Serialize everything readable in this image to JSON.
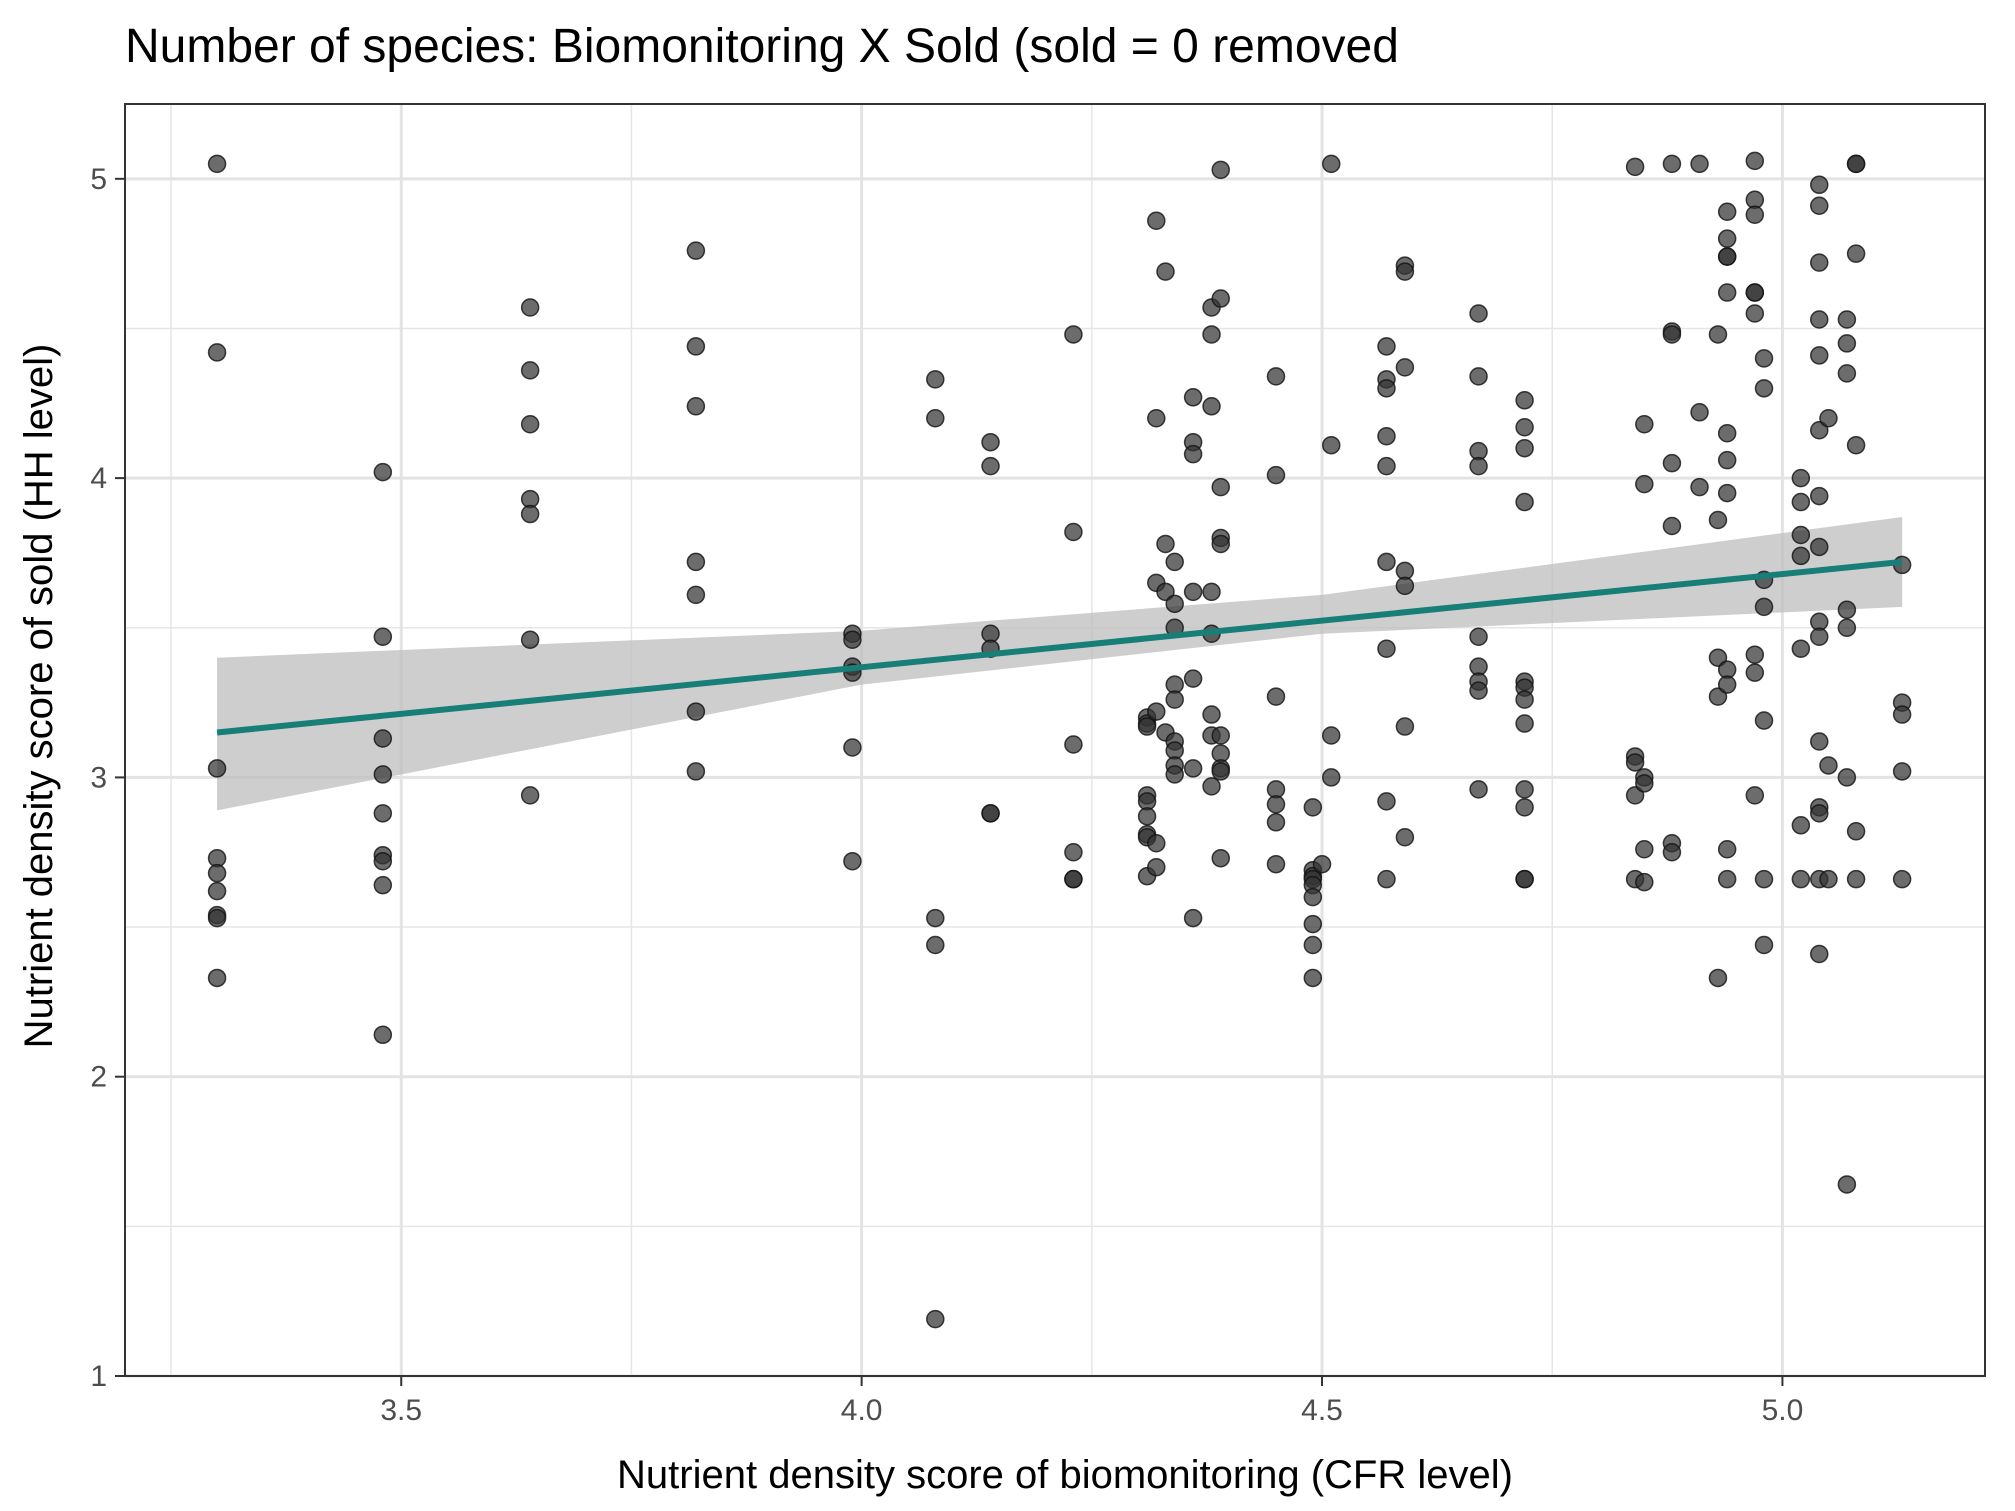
{
  "chart_data": {
    "type": "scatter",
    "title": "Number of species: Biomonitoring X Sold (sold = 0 removed",
    "xlabel": "Nutrient density score of biomonitoring (CFR level)",
    "ylabel": "Nutrient density score of sold (HH level)",
    "xlim": [
      3.2,
      5.22
    ],
    "ylim": [
      1.0,
      5.25
    ],
    "x_ticks": [
      3.5,
      4.0,
      4.5,
      5.0
    ],
    "x_tick_labels": [
      "3.5",
      "4.0",
      "4.5",
      "5.0"
    ],
    "y_ticks": [
      1,
      2,
      3,
      4,
      5
    ],
    "y_tick_labels": [
      "1",
      "2",
      "3",
      "4",
      "5"
    ],
    "grid": true,
    "legend": "none",
    "colors": {
      "points": "#333333",
      "fit_line": "#177e78",
      "ribbon": "#bdbdbd",
      "grid": "#e6e6e6",
      "panel_border": "#333333"
    },
    "fit": {
      "method": "linear",
      "x": [
        3.3,
        5.13
      ],
      "y": [
        3.15,
        3.72
      ],
      "ci_lower": [
        2.89,
        3.57
      ],
      "ci_upper": [
        3.4,
        3.87
      ],
      "ci_x": [
        3.3,
        4.0,
        4.5,
        5.13
      ],
      "ci_lo_series": [
        2.89,
        3.31,
        3.48,
        3.57
      ],
      "ci_hi_series": [
        3.4,
        3.49,
        3.61,
        3.87
      ]
    },
    "points": [
      [
        3.3,
        5.05
      ],
      [
        3.3,
        4.42
      ],
      [
        3.3,
        3.03
      ],
      [
        3.3,
        2.73
      ],
      [
        3.3,
        2.68
      ],
      [
        3.3,
        2.62
      ],
      [
        3.3,
        2.54
      ],
      [
        3.3,
        2.53
      ],
      [
        3.3,
        2.33
      ],
      [
        3.48,
        4.02
      ],
      [
        3.48,
        3.47
      ],
      [
        3.48,
        3.13
      ],
      [
        3.48,
        3.01
      ],
      [
        3.48,
        2.88
      ],
      [
        3.48,
        2.74
      ],
      [
        3.48,
        2.72
      ],
      [
        3.48,
        2.64
      ],
      [
        3.48,
        2.14
      ],
      [
        3.64,
        4.57
      ],
      [
        3.64,
        4.36
      ],
      [
        3.64,
        4.18
      ],
      [
        3.64,
        3.93
      ],
      [
        3.64,
        3.88
      ],
      [
        3.64,
        3.46
      ],
      [
        3.64,
        2.94
      ],
      [
        3.82,
        4.76
      ],
      [
        3.82,
        4.44
      ],
      [
        3.82,
        4.24
      ],
      [
        3.82,
        3.72
      ],
      [
        3.82,
        3.61
      ],
      [
        3.82,
        3.22
      ],
      [
        3.82,
        3.02
      ],
      [
        3.99,
        3.48
      ],
      [
        3.99,
        3.46
      ],
      [
        3.99,
        3.37
      ],
      [
        3.99,
        3.35
      ],
      [
        3.99,
        3.1
      ],
      [
        3.99,
        2.72
      ],
      [
        4.08,
        4.33
      ],
      [
        4.08,
        4.2
      ],
      [
        4.08,
        2.53
      ],
      [
        4.08,
        2.44
      ],
      [
        4.08,
        1.19
      ],
      [
        4.14,
        4.12
      ],
      [
        4.14,
        4.04
      ],
      [
        4.14,
        3.48
      ],
      [
        4.14,
        3.43
      ],
      [
        4.14,
        2.88
      ],
      [
        4.14,
        2.88
      ],
      [
        4.23,
        4.48
      ],
      [
        4.23,
        3.82
      ],
      [
        4.23,
        3.11
      ],
      [
        4.23,
        2.75
      ],
      [
        4.23,
        2.66
      ],
      [
        4.23,
        2.66
      ],
      [
        4.31,
        3.2
      ],
      [
        4.31,
        3.18
      ],
      [
        4.31,
        3.17
      ],
      [
        4.31,
        2.94
      ],
      [
        4.31,
        2.92
      ],
      [
        4.31,
        2.87
      ],
      [
        4.31,
        2.81
      ],
      [
        4.31,
        2.8
      ],
      [
        4.31,
        2.67
      ],
      [
        4.32,
        4.86
      ],
      [
        4.32,
        4.2
      ],
      [
        4.32,
        3.65
      ],
      [
        4.32,
        3.22
      ],
      [
        4.32,
        2.78
      ],
      [
        4.32,
        2.7
      ],
      [
        4.33,
        4.69
      ],
      [
        4.33,
        3.78
      ],
      [
        4.33,
        3.62
      ],
      [
        4.33,
        3.15
      ],
      [
        4.34,
        3.72
      ],
      [
        4.34,
        3.58
      ],
      [
        4.34,
        3.5
      ],
      [
        4.34,
        3.31
      ],
      [
        4.34,
        3.26
      ],
      [
        4.34,
        3.12
      ],
      [
        4.34,
        3.09
      ],
      [
        4.34,
        3.04
      ],
      [
        4.34,
        3.01
      ],
      [
        4.36,
        4.27
      ],
      [
        4.36,
        4.12
      ],
      [
        4.36,
        4.08
      ],
      [
        4.36,
        3.62
      ],
      [
        4.36,
        3.33
      ],
      [
        4.36,
        3.03
      ],
      [
        4.36,
        2.53
      ],
      [
        4.38,
        4.57
      ],
      [
        4.38,
        4.48
      ],
      [
        4.38,
        4.24
      ],
      [
        4.38,
        3.62
      ],
      [
        4.38,
        3.48
      ],
      [
        4.38,
        3.21
      ],
      [
        4.38,
        3.14
      ],
      [
        4.38,
        2.97
      ],
      [
        4.39,
        5.03
      ],
      [
        4.39,
        4.6
      ],
      [
        4.39,
        3.97
      ],
      [
        4.39,
        3.8
      ],
      [
        4.39,
        3.78
      ],
      [
        4.39,
        3.14
      ],
      [
        4.39,
        3.08
      ],
      [
        4.39,
        3.03
      ],
      [
        4.39,
        3.02
      ],
      [
        4.39,
        2.73
      ],
      [
        4.45,
        4.34
      ],
      [
        4.45,
        4.01
      ],
      [
        4.45,
        3.27
      ],
      [
        4.45,
        2.96
      ],
      [
        4.45,
        2.91
      ],
      [
        4.45,
        2.85
      ],
      [
        4.45,
        2.71
      ],
      [
        4.49,
        2.9
      ],
      [
        4.49,
        2.69
      ],
      [
        4.49,
        2.67
      ],
      [
        4.49,
        2.66
      ],
      [
        4.49,
        2.64
      ],
      [
        4.49,
        2.6
      ],
      [
        4.49,
        2.51
      ],
      [
        4.49,
        2.44
      ],
      [
        4.49,
        2.33
      ],
      [
        4.5,
        2.71
      ],
      [
        4.51,
        5.05
      ],
      [
        4.51,
        4.11
      ],
      [
        4.51,
        3.14
      ],
      [
        4.51,
        3.0
      ],
      [
        4.57,
        4.44
      ],
      [
        4.57,
        4.33
      ],
      [
        4.57,
        4.3
      ],
      [
        4.57,
        4.14
      ],
      [
        4.57,
        4.04
      ],
      [
        4.57,
        3.72
      ],
      [
        4.57,
        3.43
      ],
      [
        4.57,
        2.92
      ],
      [
        4.57,
        2.66
      ],
      [
        4.59,
        4.71
      ],
      [
        4.59,
        4.69
      ],
      [
        4.59,
        4.37
      ],
      [
        4.59,
        3.69
      ],
      [
        4.59,
        3.64
      ],
      [
        4.59,
        3.17
      ],
      [
        4.59,
        2.8
      ],
      [
        4.67,
        4.55
      ],
      [
        4.67,
        4.34
      ],
      [
        4.67,
        4.09
      ],
      [
        4.67,
        4.04
      ],
      [
        4.67,
        3.47
      ],
      [
        4.67,
        3.37
      ],
      [
        4.67,
        3.32
      ],
      [
        4.67,
        3.29
      ],
      [
        4.67,
        2.96
      ],
      [
        4.72,
        4.26
      ],
      [
        4.72,
        4.17
      ],
      [
        4.72,
        4.1
      ],
      [
        4.72,
        3.92
      ],
      [
        4.72,
        3.32
      ],
      [
        4.72,
        3.3
      ],
      [
        4.72,
        3.26
      ],
      [
        4.72,
        3.18
      ],
      [
        4.72,
        2.96
      ],
      [
        4.72,
        2.9
      ],
      [
        4.72,
        2.66
      ],
      [
        4.72,
        2.66
      ],
      [
        4.84,
        5.04
      ],
      [
        4.84,
        3.07
      ],
      [
        4.84,
        3.05
      ],
      [
        4.84,
        2.94
      ],
      [
        4.84,
        2.66
      ],
      [
        4.85,
        4.18
      ],
      [
        4.85,
        3.98
      ],
      [
        4.85,
        3.0
      ],
      [
        4.85,
        2.98
      ],
      [
        4.85,
        2.76
      ],
      [
        4.85,
        2.65
      ],
      [
        4.88,
        5.05
      ],
      [
        4.88,
        4.49
      ],
      [
        4.88,
        4.48
      ],
      [
        4.88,
        4.05
      ],
      [
        4.88,
        3.84
      ],
      [
        4.88,
        2.78
      ],
      [
        4.88,
        2.75
      ],
      [
        4.91,
        5.05
      ],
      [
        4.91,
        4.22
      ],
      [
        4.91,
        3.97
      ],
      [
        4.93,
        4.48
      ],
      [
        4.93,
        3.86
      ],
      [
        4.93,
        3.4
      ],
      [
        4.93,
        3.27
      ],
      [
        4.93,
        2.33
      ],
      [
        4.94,
        4.89
      ],
      [
        4.94,
        4.8
      ],
      [
        4.94,
        4.74
      ],
      [
        4.94,
        4.74
      ],
      [
        4.94,
        4.62
      ],
      [
        4.94,
        4.15
      ],
      [
        4.94,
        4.06
      ],
      [
        4.94,
        3.95
      ],
      [
        4.94,
        3.36
      ],
      [
        4.94,
        3.31
      ],
      [
        4.94,
        2.76
      ],
      [
        4.94,
        2.66
      ],
      [
        4.97,
        5.06
      ],
      [
        4.97,
        4.93
      ],
      [
        4.97,
        4.88
      ],
      [
        4.97,
        4.62
      ],
      [
        4.97,
        4.62
      ],
      [
        4.97,
        4.55
      ],
      [
        4.97,
        3.41
      ],
      [
        4.97,
        3.35
      ],
      [
        4.97,
        2.94
      ],
      [
        4.98,
        4.4
      ],
      [
        4.98,
        4.3
      ],
      [
        4.98,
        3.66
      ],
      [
        4.98,
        3.57
      ],
      [
        4.98,
        3.19
      ],
      [
        4.98,
        2.66
      ],
      [
        4.98,
        2.44
      ],
      [
        5.02,
        4.0
      ],
      [
        5.02,
        3.92
      ],
      [
        5.02,
        3.81
      ],
      [
        5.02,
        3.74
      ],
      [
        5.02,
        3.43
      ],
      [
        5.02,
        2.84
      ],
      [
        5.02,
        2.66
      ],
      [
        5.04,
        4.98
      ],
      [
        5.04,
        4.91
      ],
      [
        5.04,
        4.72
      ],
      [
        5.04,
        4.53
      ],
      [
        5.04,
        4.41
      ],
      [
        5.04,
        4.16
      ],
      [
        5.04,
        3.94
      ],
      [
        5.04,
        3.77
      ],
      [
        5.04,
        3.52
      ],
      [
        5.04,
        3.47
      ],
      [
        5.04,
        3.12
      ],
      [
        5.04,
        2.9
      ],
      [
        5.04,
        2.88
      ],
      [
        5.04,
        2.66
      ],
      [
        5.04,
        2.41
      ],
      [
        5.05,
        4.2
      ],
      [
        5.05,
        3.04
      ],
      [
        5.05,
        2.66
      ],
      [
        5.07,
        4.53
      ],
      [
        5.07,
        4.45
      ],
      [
        5.07,
        4.35
      ],
      [
        5.07,
        3.56
      ],
      [
        5.07,
        3.5
      ],
      [
        5.07,
        3.0
      ],
      [
        5.07,
        1.64
      ],
      [
        5.08,
        5.05
      ],
      [
        5.08,
        5.05
      ],
      [
        5.08,
        4.75
      ],
      [
        5.08,
        4.11
      ],
      [
        5.08,
        2.82
      ],
      [
        5.08,
        2.66
      ],
      [
        5.13,
        3.71
      ],
      [
        5.13,
        3.25
      ],
      [
        5.13,
        3.21
      ],
      [
        5.13,
        3.02
      ],
      [
        5.13,
        2.66
      ]
    ]
  }
}
